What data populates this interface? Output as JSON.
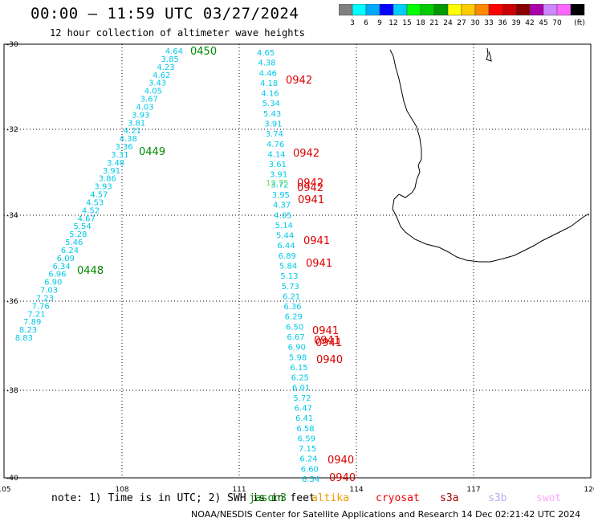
{
  "header": {
    "title": "00:00 — 11:59 UTC 03/27/2024",
    "subtitle": "12 hour collection of altimeter wave heights"
  },
  "colorbar": {
    "unit": "(ft)",
    "colors": [
      "#808080",
      "#00ffff",
      "#00aaff",
      "#0000ff",
      "#00ccff",
      "#00ff00",
      "#00cc00",
      "#009900",
      "#ffff00",
      "#ffcc00",
      "#ff8800",
      "#ff0000",
      "#cc0000",
      "#880000",
      "#aa00aa",
      "#cc88ff",
      "#ff66ff",
      "#000000"
    ],
    "labels": [
      "3",
      "6",
      "9",
      "12",
      "15",
      "18",
      "21",
      "24",
      "27",
      "30",
      "33",
      "36",
      "39",
      "42",
      "45",
      "70"
    ]
  },
  "axes": {
    "lon_ticks": [
      "105",
      "108",
      "111",
      "114",
      "117",
      "120"
    ],
    "lat_ticks": [
      "-30",
      "-32",
      "-34",
      "-36",
      "-38",
      "-40"
    ]
  },
  "track_west": {
    "color": "#00c8e8",
    "values": [
      "4.64",
      "3.85",
      "4.23",
      "4.62",
      "3.43",
      "4.05",
      "3.67",
      "4.03",
      "3.93",
      "3.81",
      "4.21",
      "4.38",
      "3.36",
      "3.31",
      "3.48",
      "3.91",
      "3.86",
      "3.93",
      "4.57",
      "4.53",
      "4.52",
      "4.67",
      "5.54",
      "5.28",
      "5.46",
      "6.24",
      "6.09",
      "6.34",
      "6.96",
      "6.90",
      "7.03",
      "7.23",
      "7.76",
      "7.21",
      "7.89",
      "8.23",
      "8.83"
    ],
    "times": [
      "0450",
      "0449",
      "0448"
    ],
    "time_color": "#008800"
  },
  "track_east": {
    "color": "#00c8e8",
    "values": [
      "4.65",
      "4.38",
      "4.46",
      "4.18",
      "4.16",
      "5.34",
      "5.43",
      "3.91",
      "3.74",
      "4.76",
      "4.14",
      "3.61",
      "3.91",
      "3.72",
      "3.95",
      "4.37",
      "4.05",
      "5.14",
      "5.44",
      "6.44",
      "6.89",
      "5.84",
      "5.13",
      "5.73",
      "6.21",
      "6.36",
      "6.29",
      "6.50",
      "6.67",
      "6.90",
      "5.98",
      "6.15",
      "6.25",
      "6.01",
      "5.72",
      "6.47",
      "6.41",
      "6.58",
      "6.59",
      "7.15",
      "6.24",
      "6.60",
      "6.54"
    ],
    "green_value": "12.75",
    "green_color": "#66dd66",
    "times": [
      "0942",
      "0942",
      "0942",
      "0942",
      "0941",
      "0941",
      "0941",
      "0941",
      "0941",
      "0941",
      "0940",
      "0940",
      "0940"
    ],
    "time_color": "#dd0000"
  },
  "footer": {
    "note": "note:  1) Time is in UTC; 2) SWH is in feet",
    "satellites": [
      {
        "name": "jason3",
        "color": "#008800"
      },
      {
        "name": "altika",
        "color": "#ee9900"
      },
      {
        "name": "cryosat",
        "color": "#ee0000"
      },
      {
        "name": "s3a",
        "color": "#aa0000"
      },
      {
        "name": "s3b",
        "color": "#bbaaee"
      },
      {
        "name": "swot",
        "color": "#ffaaff"
      }
    ],
    "credit": "NOAA/NESDIS Center for Satellite Applications and Research    14 Dec 02:21:42 UTC 2024"
  }
}
